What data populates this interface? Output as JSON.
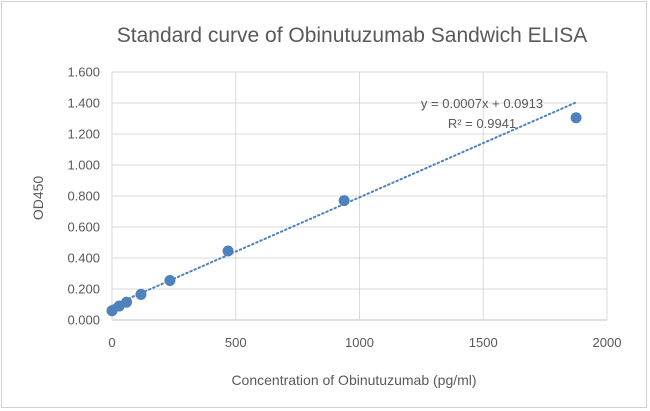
{
  "chart_data": {
    "type": "scatter",
    "title": "Standard curve of Obinutuzumab Sandwich ELISA",
    "xlabel": "Concentration of Obinutuzumab (pg/ml)",
    "ylabel": "OD450",
    "xlim": [
      0,
      2000
    ],
    "ylim": [
      0,
      1.6
    ],
    "xticks": [
      "0",
      "500",
      "1000",
      "1500",
      "2000"
    ],
    "yticks": [
      "0.000",
      "0.200",
      "0.400",
      "0.600",
      "0.800",
      "1.000",
      "1.200",
      "1.400",
      "1.600"
    ],
    "grid": true,
    "points": [
      {
        "x": 0,
        "y": 0.06
      },
      {
        "x": 29,
        "y": 0.09
      },
      {
        "x": 59,
        "y": 0.115
      },
      {
        "x": 117,
        "y": 0.165
      },
      {
        "x": 234,
        "y": 0.255
      },
      {
        "x": 469,
        "y": 0.445
      },
      {
        "x": 938,
        "y": 0.77
      },
      {
        "x": 1875,
        "y": 1.305
      }
    ],
    "trendline": {
      "type": "linear",
      "slope": 0.0007,
      "intercept": 0.0913,
      "style": "dotted"
    },
    "annotations": {
      "equation": "y = 0.0007x + 0.0913",
      "r2": "R² = 0.9941"
    },
    "colors": {
      "marker": "#4f81bd",
      "grid": "#d9d9d9",
      "text": "#595959"
    }
  }
}
